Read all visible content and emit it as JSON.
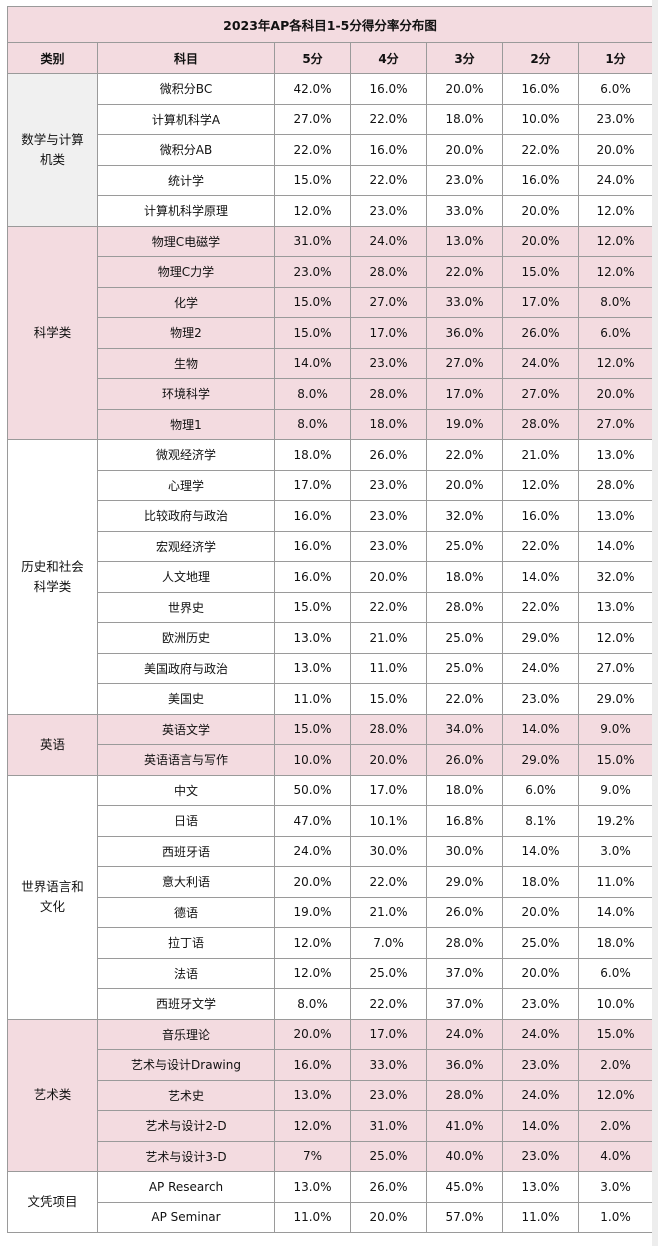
{
  "title": "2023年AP各科目1-5分得分率分布图",
  "headers": [
    "类别",
    "科目",
    "5分",
    "4分",
    "3分",
    "2分",
    "1分"
  ],
  "colors": {
    "pink": "#f3dbe0",
    "white": "#ffffff",
    "gray": "#f0f0f0",
    "border": "#9a9a9a"
  },
  "categories": [
    {
      "name": "数学与计算机类",
      "rows": [
        {
          "subject": "微积分BC",
          "s5": "42.0%",
          "s4": "16.0%",
          "s3": "20.0%",
          "s2": "16.0%",
          "s1": "6.0%"
        },
        {
          "subject": "计算机科学A",
          "s5": "27.0%",
          "s4": "22.0%",
          "s3": "18.0%",
          "s2": "10.0%",
          "s1": "23.0%"
        },
        {
          "subject": "微积分AB",
          "s5": "22.0%",
          "s4": "16.0%",
          "s3": "20.0%",
          "s2": "22.0%",
          "s1": "20.0%"
        },
        {
          "subject": "统计学",
          "s5": "15.0%",
          "s4": "22.0%",
          "s3": "23.0%",
          "s2": "16.0%",
          "s1": "24.0%"
        },
        {
          "subject": "计算机科学原理",
          "s5": "12.0%",
          "s4": "23.0%",
          "s3": "33.0%",
          "s2": "20.0%",
          "s1": "12.0%"
        }
      ]
    },
    {
      "name": "科学类",
      "rows": [
        {
          "subject": "物理C电磁学",
          "s5": "31.0%",
          "s4": "24.0%",
          "s3": "13.0%",
          "s2": "20.0%",
          "s1": "12.0%"
        },
        {
          "subject": "物理C力学",
          "s5": "23.0%",
          "s4": "28.0%",
          "s3": "22.0%",
          "s2": "15.0%",
          "s1": "12.0%"
        },
        {
          "subject": "化学",
          "s5": "15.0%",
          "s4": "27.0%",
          "s3": "33.0%",
          "s2": "17.0%",
          "s1": "8.0%"
        },
        {
          "subject": "物理2",
          "s5": "15.0%",
          "s4": "17.0%",
          "s3": "36.0%",
          "s2": "26.0%",
          "s1": "6.0%"
        },
        {
          "subject": "生物",
          "s5": "14.0%",
          "s4": "23.0%",
          "s3": "27.0%",
          "s2": "24.0%",
          "s1": "12.0%"
        },
        {
          "subject": "环境科学",
          "s5": "8.0%",
          "s4": "28.0%",
          "s3": "17.0%",
          "s2": "27.0%",
          "s1": "20.0%"
        },
        {
          "subject": "物理1",
          "s5": "8.0%",
          "s4": "18.0%",
          "s3": "19.0%",
          "s2": "28.0%",
          "s1": "27.0%"
        }
      ]
    },
    {
      "name": "历史和社会科学类",
      "rows": [
        {
          "subject": "微观经济学",
          "s5": "18.0%",
          "s4": "26.0%",
          "s3": "22.0%",
          "s2": "21.0%",
          "s1": "13.0%"
        },
        {
          "subject": "心理学",
          "s5": "17.0%",
          "s4": "23.0%",
          "s3": "20.0%",
          "s2": "12.0%",
          "s1": "28.0%"
        },
        {
          "subject": "比较政府与政治",
          "s5": "16.0%",
          "s4": "23.0%",
          "s3": "32.0%",
          "s2": "16.0%",
          "s1": "13.0%"
        },
        {
          "subject": "宏观经济学",
          "s5": "16.0%",
          "s4": "23.0%",
          "s3": "25.0%",
          "s2": "22.0%",
          "s1": "14.0%"
        },
        {
          "subject": "人文地理",
          "s5": "16.0%",
          "s4": "20.0%",
          "s3": "18.0%",
          "s2": "14.0%",
          "s1": "32.0%"
        },
        {
          "subject": "世界史",
          "s5": "15.0%",
          "s4": "22.0%",
          "s3": "28.0%",
          "s2": "22.0%",
          "s1": "13.0%"
        },
        {
          "subject": "欧洲历史",
          "s5": "13.0%",
          "s4": "21.0%",
          "s3": "25.0%",
          "s2": "29.0%",
          "s1": "12.0%"
        },
        {
          "subject": "美国政府与政治",
          "s5": "13.0%",
          "s4": "11.0%",
          "s3": "25.0%",
          "s2": "24.0%",
          "s1": "27.0%"
        },
        {
          "subject": "美国史",
          "s5": "11.0%",
          "s4": "15.0%",
          "s3": "22.0%",
          "s2": "23.0%",
          "s1": "29.0%"
        }
      ]
    },
    {
      "name": "英语",
      "rows": [
        {
          "subject": "英语文学",
          "s5": "15.0%",
          "s4": "28.0%",
          "s3": "34.0%",
          "s2": "14.0%",
          "s1": "9.0%"
        },
        {
          "subject": "英语语言与写作",
          "s5": "10.0%",
          "s4": "20.0%",
          "s3": "26.0%",
          "s2": "29.0%",
          "s1": "15.0%"
        }
      ]
    },
    {
      "name": "世界语言和文化",
      "rows": [
        {
          "subject": "中文",
          "s5": "50.0%",
          "s4": "17.0%",
          "s3": "18.0%",
          "s2": "6.0%",
          "s1": "9.0%"
        },
        {
          "subject": "日语",
          "s5": "47.0%",
          "s4": "10.1%",
          "s3": "16.8%",
          "s2": "8.1%",
          "s1": "19.2%"
        },
        {
          "subject": "西班牙语",
          "s5": "24.0%",
          "s4": "30.0%",
          "s3": "30.0%",
          "s2": "14.0%",
          "s1": "3.0%"
        },
        {
          "subject": "意大利语",
          "s5": "20.0%",
          "s4": "22.0%",
          "s3": "29.0%",
          "s2": "18.0%",
          "s1": "11.0%"
        },
        {
          "subject": "德语",
          "s5": "19.0%",
          "s4": "21.0%",
          "s3": "26.0%",
          "s2": "20.0%",
          "s1": "14.0%"
        },
        {
          "subject": "拉丁语",
          "s5": "12.0%",
          "s4": "7.0%",
          "s3": "28.0%",
          "s2": "25.0%",
          "s1": "18.0%"
        },
        {
          "subject": "法语",
          "s5": "12.0%",
          "s4": "25.0%",
          "s3": "37.0%",
          "s2": "20.0%",
          "s1": "6.0%"
        },
        {
          "subject": "西班牙文学",
          "s5": "8.0%",
          "s4": "22.0%",
          "s3": "37.0%",
          "s2": "23.0%",
          "s1": "10.0%"
        }
      ]
    },
    {
      "name": "艺术类",
      "rows": [
        {
          "subject": "音乐理论",
          "s5": "20.0%",
          "s4": "17.0%",
          "s3": "24.0%",
          "s2": "24.0%",
          "s1": "15.0%"
        },
        {
          "subject": "艺术与设计Drawing",
          "s5": "16.0%",
          "s4": "33.0%",
          "s3": "36.0%",
          "s2": "23.0%",
          "s1": "2.0%"
        },
        {
          "subject": "艺术史",
          "s5": "13.0%",
          "s4": "23.0%",
          "s3": "28.0%",
          "s2": "24.0%",
          "s1": "12.0%"
        },
        {
          "subject": "艺术与设计2-D",
          "s5": "12.0%",
          "s4": "31.0%",
          "s3": "41.0%",
          "s2": "14.0%",
          "s1": "2.0%"
        },
        {
          "subject": "艺术与设计3-D",
          "s5": "7%",
          "s4": "25.0%",
          "s3": "40.0%",
          "s2": "23.0%",
          "s1": "4.0%"
        }
      ]
    },
    {
      "name": "文凭项目",
      "rows": [
        {
          "subject": "AP Research",
          "s5": "13.0%",
          "s4": "26.0%",
          "s3": "45.0%",
          "s2": "13.0%",
          "s1": "3.0%"
        },
        {
          "subject": "AP Seminar",
          "s5": "11.0%",
          "s4": "20.0%",
          "s3": "57.0%",
          "s2": "11.0%",
          "s1": "1.0%"
        }
      ]
    }
  ]
}
